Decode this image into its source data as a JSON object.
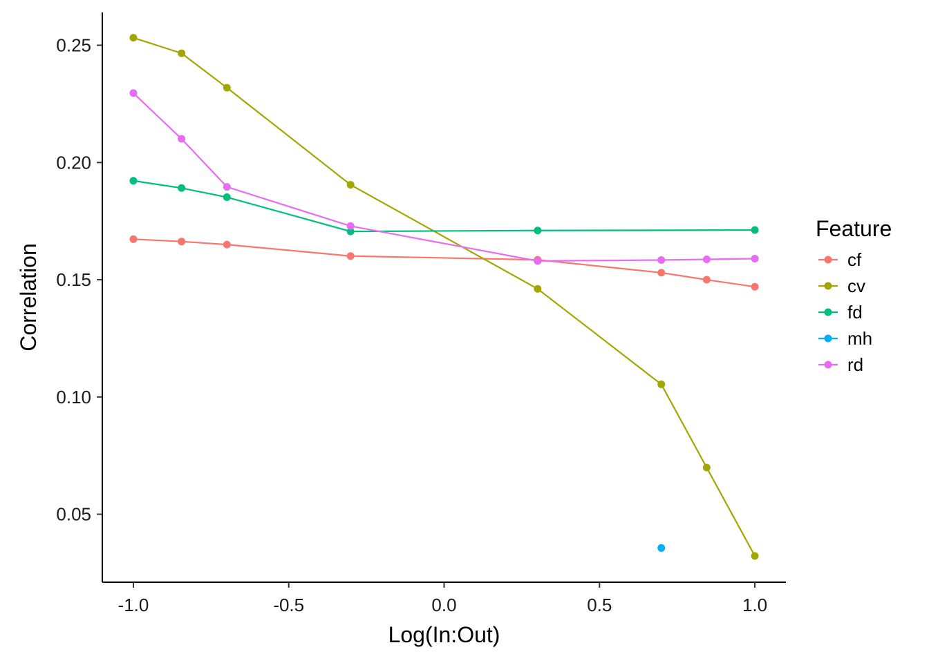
{
  "chart_data": {
    "type": "line",
    "xlabel": "Log(In:Out)",
    "ylabel": "Correlation",
    "xlim": [
      -1.1,
      1.1
    ],
    "ylim": [
      0.021,
      0.264
    ],
    "xticks": [
      -1.0,
      -0.5,
      0.0,
      0.5,
      1.0
    ],
    "xtick_labels": [
      "-1.0",
      "-0.5",
      "0.0",
      "0.5",
      "1.0"
    ],
    "yticks": [
      0.05,
      0.1,
      0.15,
      0.2,
      0.25
    ],
    "ytick_labels": [
      "0.05",
      "0.10",
      "0.15",
      "0.20",
      "0.25"
    ],
    "grid": false,
    "legend": {
      "title": "Feature",
      "position": "right"
    },
    "series": [
      {
        "name": "cf",
        "color": "#F8766D",
        "x": [
          -1.0,
          -0.845,
          -0.699,
          -0.301,
          0.301,
          0.699,
          0.845,
          1.0
        ],
        "y": [
          0.1673,
          0.1663,
          0.165,
          0.1601,
          0.1585,
          0.153,
          0.15,
          0.147
        ]
      },
      {
        "name": "cv",
        "color": "#A3A500",
        "x": [
          -1.0,
          -0.845,
          -0.699,
          -0.301,
          0.301,
          0.699,
          0.845,
          1.0
        ],
        "y": [
          0.2532,
          0.2466,
          0.2319,
          0.1905,
          0.1461,
          0.1054,
          0.0699,
          0.0322
        ]
      },
      {
        "name": "fd",
        "color": "#00BF7D",
        "x": [
          -1.0,
          -0.845,
          -0.699,
          -0.301,
          0.301,
          1.0
        ],
        "y": [
          0.1922,
          0.1891,
          0.1852,
          0.1706,
          0.171,
          0.1712
        ]
      },
      {
        "name": "mh",
        "color": "#00B0F6",
        "x": [
          0.699
        ],
        "y": [
          0.0356
        ]
      },
      {
        "name": "rd",
        "color": "#E76BF3",
        "x": [
          -1.0,
          -0.845,
          -0.699,
          -0.301,
          0.301,
          0.699,
          0.845,
          1.0
        ],
        "y": [
          0.2296,
          0.2101,
          0.1896,
          0.1729,
          0.158,
          0.1584,
          0.1587,
          0.159
        ]
      }
    ]
  }
}
